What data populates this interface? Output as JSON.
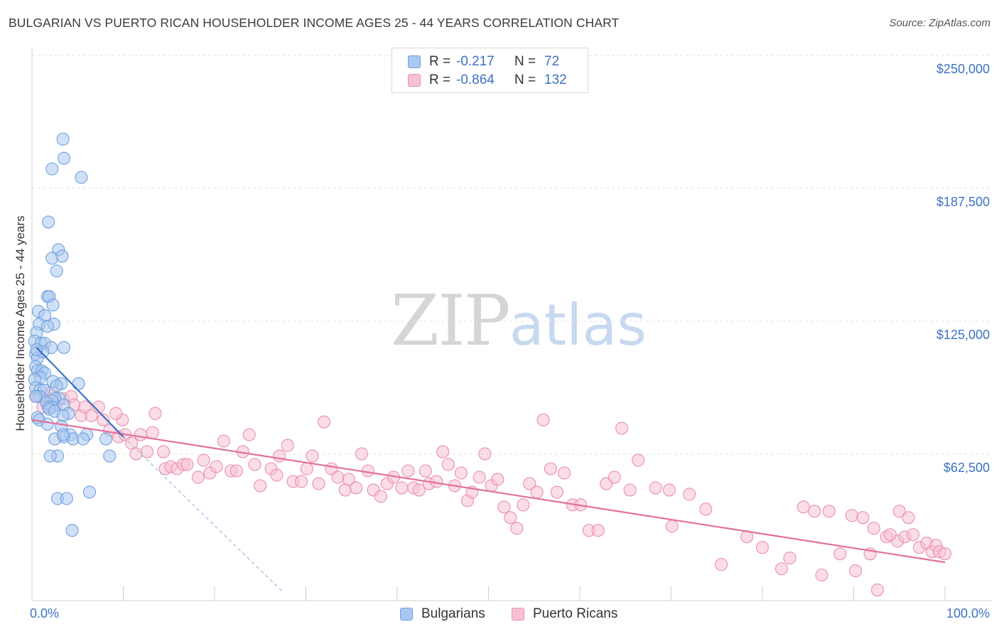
{
  "header": {
    "title": "BULGARIAN VS PUERTO RICAN HOUSEHOLDER INCOME AGES 25 - 44 YEARS CORRELATION CHART",
    "source": "Source: ZipAtlas.com"
  },
  "watermark": {
    "zip": "ZIP",
    "atlas": "atlas"
  },
  "legend": {
    "rows": [
      {
        "r_label": "R =",
        "r_value": "-0.217",
        "n_label": "N =",
        "n_value": "72",
        "color": "#a9c8f0",
        "border": "#6f9fdc"
      },
      {
        "r_label": "R =",
        "r_value": "-0.864",
        "n_label": "N =",
        "n_value": "132",
        "color": "#f7c1d3",
        "border": "#e98fae"
      }
    ]
  },
  "bottom_legend": [
    {
      "label": "Bulgarians",
      "color": "#a9c8f0",
      "border": "#6f9fdc"
    },
    {
      "label": "Puerto Ricans",
      "color": "#f7c1d3",
      "border": "#e98fae"
    }
  ],
  "chart_data": {
    "type": "scatter",
    "title": "BULGARIAN VS PUERTO RICAN HOUSEHOLDER INCOME AGES 25 - 44 YEARS CORRELATION CHART",
    "xlabel": "",
    "ylabel": "Householder Income Ages 25 - 44 years",
    "xlim": [
      0,
      100
    ],
    "ylim": [
      0,
      250000
    ],
    "x_tick_labels": [
      "0.0%",
      "100.0%"
    ],
    "y_ticks": [
      62500,
      125000,
      187500,
      250000
    ],
    "y_tick_labels": [
      "$62,500",
      "$125,000",
      "$187,500",
      "$250,000"
    ],
    "grid": true,
    "series": [
      {
        "name": "Bulgarians",
        "color": "#6f9fdc",
        "fill": "#a9c8f0",
        "trend": {
          "x": [
            0.5,
            10
          ],
          "y": [
            119000,
            77000
          ],
          "dashed_extension": {
            "x": [
              10,
              27.5
            ],
            "y": [
              77000,
              4000
            ]
          }
        },
        "points": [
          [
            3.4,
            217000
          ],
          [
            3.5,
            208000
          ],
          [
            2.2,
            203000
          ],
          [
            5.4,
            199000
          ],
          [
            1.8,
            178000
          ],
          [
            2.9,
            165000
          ],
          [
            2.2,
            161000
          ],
          [
            3.3,
            162000
          ],
          [
            2.7,
            155000
          ],
          [
            1.7,
            143000
          ],
          [
            1.9,
            143000
          ],
          [
            2.3,
            139000
          ],
          [
            0.7,
            136000
          ],
          [
            1.4,
            134000
          ],
          [
            0.8,
            130000
          ],
          [
            2.4,
            130000
          ],
          [
            1.7,
            129000
          ],
          [
            0.5,
            126000
          ],
          [
            0.3,
            122000
          ],
          [
            1.0,
            121000
          ],
          [
            1.4,
            121000
          ],
          [
            3.5,
            119000
          ],
          [
            0.4,
            116000
          ],
          [
            0.6,
            114000
          ],
          [
            0.4,
            110000
          ],
          [
            0.6,
            108000
          ],
          [
            1.1,
            108000
          ],
          [
            1.4,
            107000
          ],
          [
            0.9,
            105000
          ],
          [
            0.3,
            104000
          ],
          [
            2.3,
            103000
          ],
          [
            3.2,
            102000
          ],
          [
            5.1,
            102000
          ],
          [
            0.4,
            100000
          ],
          [
            0.9,
            99000
          ],
          [
            1.3,
            99000
          ],
          [
            0.8,
            96000
          ],
          [
            3.0,
            95000
          ],
          [
            2.5,
            95000
          ],
          [
            2.2,
            94000
          ],
          [
            1.6,
            93000
          ],
          [
            3.5,
            92000
          ],
          [
            1.8,
            91000
          ],
          [
            2.2,
            91000
          ],
          [
            1.9,
            90000
          ],
          [
            2.5,
            89000
          ],
          [
            4.0,
            88000
          ],
          [
            3.4,
            87000
          ],
          [
            0.6,
            86000
          ],
          [
            0.8,
            85000
          ],
          [
            1.7,
            83000
          ],
          [
            3.2,
            82000
          ],
          [
            4.2,
            78000
          ],
          [
            6.0,
            78000
          ],
          [
            3.5,
            77000
          ],
          [
            2.5,
            76000
          ],
          [
            4.5,
            76000
          ],
          [
            5.6,
            76000
          ],
          [
            8.1,
            76000
          ],
          [
            2.8,
            68000
          ],
          [
            2.0,
            68000
          ],
          [
            8.5,
            68000
          ],
          [
            2.8,
            48000
          ],
          [
            3.8,
            48000
          ],
          [
            6.3,
            51000
          ],
          [
            4.4,
            33000
          ],
          [
            3.4,
            78000
          ],
          [
            2.1,
            119000
          ],
          [
            1.2,
            117000
          ],
          [
            0.5,
            118000
          ],
          [
            2.7,
            101000
          ],
          [
            0.4,
            96000
          ]
        ]
      },
      {
        "name": "Puerto Ricans",
        "color": "#e98fae",
        "fill": "#f7c1d3",
        "trend": {
          "x": [
            0,
            100
          ],
          "y": [
            85000,
            18000
          ]
        },
        "points": [
          [
            0.5,
            96000
          ],
          [
            1.2,
            91000
          ],
          [
            1.6,
            96000
          ],
          [
            2.2,
            98000
          ],
          [
            2.6,
            92000
          ],
          [
            3.4,
            95000
          ],
          [
            4.3,
            96000
          ],
          [
            4.6,
            92000
          ],
          [
            5.4,
            87000
          ],
          [
            5.8,
            91000
          ],
          [
            6.5,
            87000
          ],
          [
            7.3,
            91000
          ],
          [
            7.8,
            85000
          ],
          [
            8.5,
            80000
          ],
          [
            9.9,
            85000
          ],
          [
            9.2,
            88000
          ],
          [
            9.5,
            77000
          ],
          [
            10.2,
            78000
          ],
          [
            10.9,
            74000
          ],
          [
            11.4,
            69000
          ],
          [
            11.9,
            78000
          ],
          [
            12.6,
            70000
          ],
          [
            13.2,
            79000
          ],
          [
            13.5,
            88000
          ],
          [
            14.4,
            70000
          ],
          [
            14.6,
            62000
          ],
          [
            15.2,
            63000
          ],
          [
            15.9,
            62000
          ],
          [
            16.6,
            64000
          ],
          [
            17.0,
            64000
          ],
          [
            18.2,
            58000
          ],
          [
            18.8,
            66000
          ],
          [
            19.5,
            60000
          ],
          [
            20.2,
            63000
          ],
          [
            21.0,
            75000
          ],
          [
            21.8,
            61000
          ],
          [
            22.4,
            61000
          ],
          [
            23.1,
            70000
          ],
          [
            23.8,
            78000
          ],
          [
            24.4,
            64000
          ],
          [
            25.0,
            54000
          ],
          [
            26.2,
            62000
          ],
          [
            26.8,
            59000
          ],
          [
            27.1,
            68000
          ],
          [
            28.0,
            73000
          ],
          [
            28.6,
            56000
          ],
          [
            29.5,
            56000
          ],
          [
            30.1,
            62000
          ],
          [
            30.7,
            68000
          ],
          [
            31.4,
            55000
          ],
          [
            32.0,
            84000
          ],
          [
            32.8,
            62000
          ],
          [
            33.5,
            58000
          ],
          [
            34.3,
            52000
          ],
          [
            34.7,
            57000
          ],
          [
            35.5,
            53000
          ],
          [
            36.1,
            69000
          ],
          [
            36.8,
            61000
          ],
          [
            37.4,
            52000
          ],
          [
            38.2,
            49000
          ],
          [
            38.9,
            55000
          ],
          [
            39.6,
            58000
          ],
          [
            40.5,
            53000
          ],
          [
            41.2,
            61000
          ],
          [
            41.8,
            53000
          ],
          [
            42.4,
            52000
          ],
          [
            43.1,
            61000
          ],
          [
            43.5,
            55000
          ],
          [
            44.3,
            56000
          ],
          [
            45.0,
            70000
          ],
          [
            45.6,
            64000
          ],
          [
            46.3,
            54000
          ],
          [
            47.0,
            60000
          ],
          [
            47.7,
            47000
          ],
          [
            48.2,
            51000
          ],
          [
            49.0,
            58000
          ],
          [
            49.6,
            69000
          ],
          [
            50.3,
            54000
          ],
          [
            51.0,
            57000
          ],
          [
            51.7,
            44000
          ],
          [
            52.4,
            39000
          ],
          [
            53.1,
            34000
          ],
          [
            53.8,
            45000
          ],
          [
            54.5,
            55000
          ],
          [
            55.3,
            51000
          ],
          [
            56.0,
            85000
          ],
          [
            56.8,
            62000
          ],
          [
            57.5,
            51000
          ],
          [
            58.3,
            60000
          ],
          [
            59.2,
            45000
          ],
          [
            60.1,
            45000
          ],
          [
            61.0,
            33000
          ],
          [
            62.0,
            33000
          ],
          [
            62.9,
            55000
          ],
          [
            63.8,
            58000
          ],
          [
            64.6,
            81000
          ],
          [
            65.5,
            52000
          ],
          [
            66.4,
            66000
          ],
          [
            68.3,
            53000
          ],
          [
            69.8,
            52000
          ],
          [
            70.1,
            35000
          ],
          [
            72.0,
            50000
          ],
          [
            73.8,
            43000
          ],
          [
            75.5,
            17000
          ],
          [
            78.3,
            30000
          ],
          [
            80.0,
            25000
          ],
          [
            82.1,
            15000
          ],
          [
            83.0,
            20000
          ],
          [
            84.5,
            44000
          ],
          [
            85.7,
            42000
          ],
          [
            86.5,
            12000
          ],
          [
            87.3,
            42000
          ],
          [
            89.8,
            40000
          ],
          [
            91.0,
            39000
          ],
          [
            92.2,
            34000
          ],
          [
            93.6,
            30000
          ],
          [
            94.8,
            28000
          ],
          [
            95.6,
            30000
          ],
          [
            96.5,
            31000
          ],
          [
            97.2,
            25000
          ],
          [
            98.0,
            27000
          ],
          [
            98.6,
            23000
          ],
          [
            99.0,
            26000
          ],
          [
            99.4,
            23000
          ],
          [
            100.0,
            22000
          ],
          [
            88.5,
            22000
          ],
          [
            90.2,
            14000
          ],
          [
            91.8,
            22000
          ],
          [
            92.6,
            5000
          ],
          [
            94.0,
            31000
          ],
          [
            95.0,
            42000
          ],
          [
            96.0,
            39000
          ]
        ]
      }
    ]
  }
}
